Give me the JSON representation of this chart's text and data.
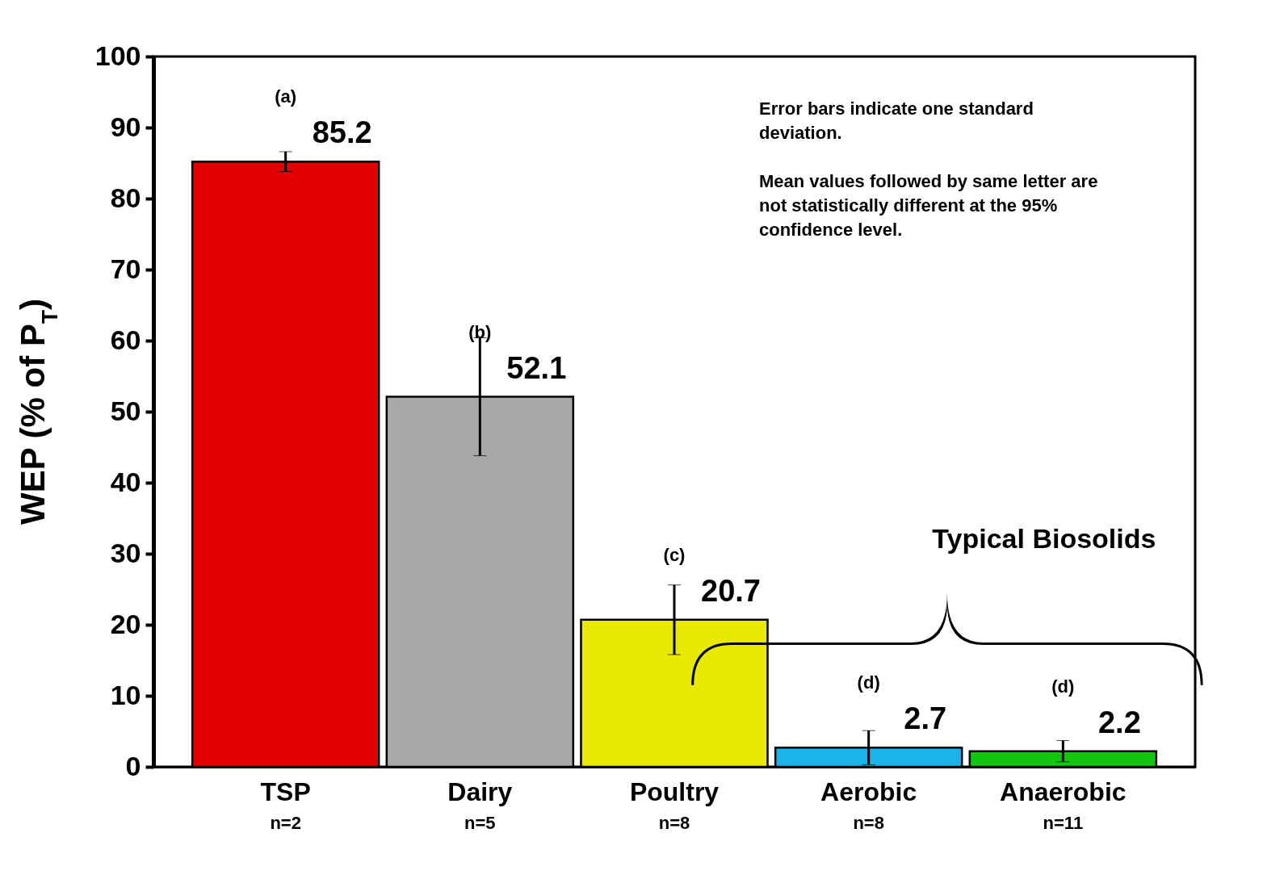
{
  "chart_data": {
    "type": "bar",
    "ylabel": "WEP (% of P$_{T}$)",
    "categories": [
      "TSP",
      "Dairy",
      "Poultry",
      "Aerobic",
      "Anaerobic"
    ],
    "values": [
      85.2,
      52.1,
      20.7,
      2.7,
      2.2
    ],
    "colors": [
      "#e00000",
      "#a8a8a8",
      "#e8e800",
      "#1ab4e8",
      "#10c810"
    ],
    "errors": [
      1.4,
      8.3,
      4.9,
      2.4,
      1.5
    ],
    "data_labels": true,
    "ylim": [
      0,
      100
    ],
    "yticks": [
      0,
      10,
      20,
      30,
      40,
      50,
      60,
      70,
      80,
      90,
      100
    ],
    "grid": false,
    "annotations": [
      "(a)",
      "(b)",
      "(c)",
      "(d)",
      "(d)",
      "n=2",
      "n=5",
      "n=8",
      "n=8",
      "n=11",
      "Error bars indicate one standard deviation.",
      "Mean values followed by same letter are not statistically different at the 95% confidence level.",
      "Typical Biosolids"
    ]
  }
}
